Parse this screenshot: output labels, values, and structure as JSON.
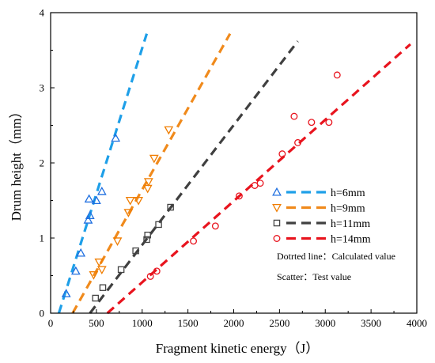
{
  "chart_data": {
    "type": "scatter",
    "xlabel": "Fragment kinetic energy（J）",
    "ylabel": "Drum height（mm）",
    "xlim": [
      0,
      4000
    ],
    "ylim": [
      0,
      4
    ],
    "x_ticks": [
      "0",
      "500",
      "1000",
      "1500",
      "2000",
      "2500",
      "3000",
      "3500",
      "4000"
    ],
    "y_ticks": [
      "0",
      "1",
      "2",
      "3",
      "4"
    ],
    "grid": false,
    "legend_position": "center-right",
    "series": [
      {
        "name": "h=6mm",
        "color": "#1f6fe0",
        "line_color": "#1e9fe8",
        "marker": "triangle-up",
        "points": [
          [
            170,
            0.26
          ],
          [
            275,
            0.56
          ],
          [
            330,
            0.8
          ],
          [
            410,
            1.24
          ],
          [
            420,
            1.52
          ],
          [
            430,
            1.3
          ],
          [
            500,
            1.5
          ],
          [
            560,
            1.62
          ],
          [
            710,
            2.33
          ]
        ],
        "line": [
          [
            90,
            0.0
          ],
          [
            1050,
            3.72
          ]
        ]
      },
      {
        "name": "h=9mm",
        "color": "#f07d00",
        "line_color": "#f08a1c",
        "marker": "triangle-down",
        "points": [
          [
            470,
            0.51
          ],
          [
            530,
            0.68
          ],
          [
            560,
            0.58
          ],
          [
            730,
            0.96
          ],
          [
            850,
            1.34
          ],
          [
            870,
            1.5
          ],
          [
            960,
            1.5
          ],
          [
            1060,
            1.66
          ],
          [
            1070,
            1.75
          ],
          [
            1130,
            2.06
          ],
          [
            1290,
            2.44
          ]
        ],
        "line": [
          [
            240,
            0.0
          ],
          [
            1960,
            3.72
          ]
        ]
      },
      {
        "name": "h=11mm",
        "color": "#444444",
        "line_color": "#404040",
        "marker": "square",
        "points": [
          [
            490,
            0.2
          ],
          [
            570,
            0.34
          ],
          [
            770,
            0.58
          ],
          [
            930,
            0.83
          ],
          [
            1050,
            0.98
          ],
          [
            1060,
            1.04
          ],
          [
            1180,
            1.18
          ],
          [
            1310,
            1.41
          ]
        ],
        "line": [
          [
            430,
            0.0
          ],
          [
            2700,
            3.62
          ]
        ]
      },
      {
        "name": "h=14mm",
        "color": "#e8141e",
        "line_color": "#e8141e",
        "marker": "circle",
        "points": [
          [
            1090,
            0.49
          ],
          [
            1160,
            0.56
          ],
          [
            1560,
            0.96
          ],
          [
            1800,
            1.16
          ],
          [
            2060,
            1.56
          ],
          [
            2230,
            1.7
          ],
          [
            2290,
            1.73
          ],
          [
            2530,
            2.12
          ],
          [
            2660,
            2.62
          ],
          [
            2700,
            2.27
          ],
          [
            2850,
            2.54
          ],
          [
            3040,
            2.54
          ],
          [
            3130,
            3.17
          ]
        ],
        "line": [
          [
            620,
            0.0
          ],
          [
            3930,
            3.58
          ]
        ]
      }
    ],
    "annotations": [
      "Dotrted line：Calculated value",
      "Scatter：Test value"
    ]
  }
}
